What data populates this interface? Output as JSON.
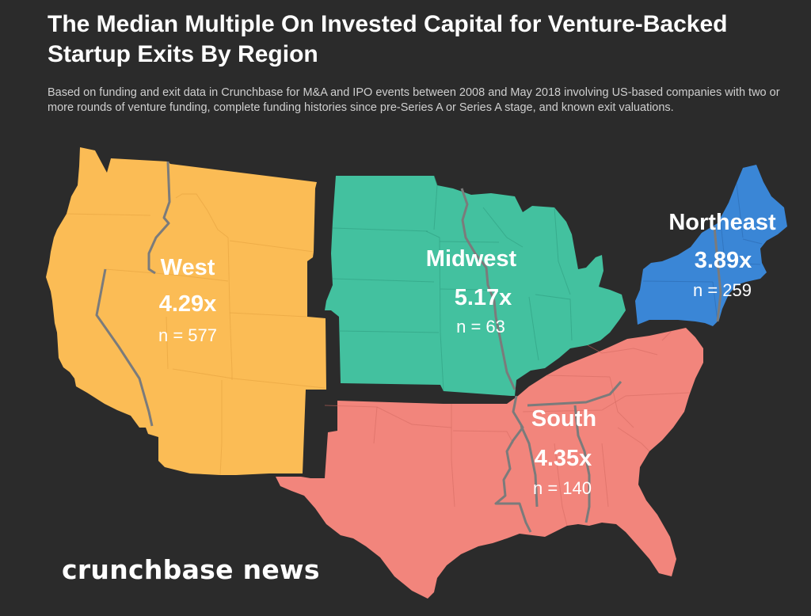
{
  "header": {
    "title": "The Median Multiple On Invested Capital for Venture-Backed Startup Exits By Region",
    "subtitle": "Based on funding and exit data in Crunchbase for M&A and IPO events between 2008 and May 2018 involving US-based companies with two or more rounds of venture funding, complete funding histories since pre-Series A or Series A stage, and known exit valuations."
  },
  "regions": {
    "west": {
      "name": "West",
      "multiple": "4.29x",
      "count": "n = 577",
      "color": "#fbbc55"
    },
    "midwest": {
      "name": "Midwest",
      "multiple": "5.17x",
      "count": "n = 63",
      "color": "#43c19f"
    },
    "northeast": {
      "name": "Northeast",
      "multiple": "3.89x",
      "count": "n = 259",
      "color": "#3a86d6"
    },
    "south": {
      "name": "South",
      "multiple": "4.35x",
      "count": "n = 140",
      "color": "#f2857c"
    }
  },
  "footer": {
    "logo": "crunchbase news"
  },
  "colors": {
    "background": "#2b2b2b",
    "river": "#7b7b7b"
  }
}
